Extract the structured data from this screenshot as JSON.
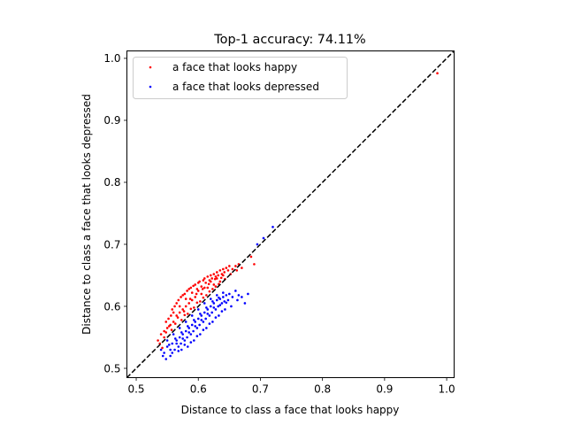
{
  "chart_data": {
    "type": "scatter",
    "title": "Top-1 accuracy: 74.11%",
    "xlabel": "Distance to class a face that looks happy",
    "ylabel": "Distance to class a face that looks depressed",
    "xlim": [
      0.485,
      1.012
    ],
    "ylim": [
      0.485,
      1.012
    ],
    "xticks": [
      0.5,
      0.6,
      0.7,
      0.8,
      0.9,
      1.0
    ],
    "xtick_labels": [
      "0.5",
      "0.6",
      "0.7",
      "0.8",
      "0.9",
      "1.0"
    ],
    "yticks": [
      0.5,
      0.6,
      0.7,
      0.8,
      0.9,
      1.0
    ],
    "ytick_labels": [
      "0.5",
      "0.6",
      "0.7",
      "0.8",
      "0.9",
      "1.0"
    ],
    "grid": false,
    "legend_position": "top-left",
    "reference_line": {
      "x": [
        0.485,
        1.012
      ],
      "y": [
        0.485,
        1.012
      ],
      "style": "dashed",
      "color": "#000000"
    },
    "series": [
      {
        "name": "a face that looks happy",
        "color": "#ff0000",
        "points": [
          [
            0.535,
            0.545
          ],
          [
            0.54,
            0.555
          ],
          [
            0.545,
            0.56
          ],
          [
            0.55,
            0.565
          ],
          [
            0.548,
            0.575
          ],
          [
            0.552,
            0.58
          ],
          [
            0.556,
            0.585
          ],
          [
            0.56,
            0.59
          ],
          [
            0.558,
            0.595
          ],
          [
            0.562,
            0.6
          ],
          [
            0.565,
            0.605
          ],
          [
            0.568,
            0.61
          ],
          [
            0.57,
            0.6
          ],
          [
            0.572,
            0.615
          ],
          [
            0.575,
            0.618
          ],
          [
            0.578,
            0.62
          ],
          [
            0.58,
            0.612
          ],
          [
            0.582,
            0.625
          ],
          [
            0.585,
            0.628
          ],
          [
            0.588,
            0.63
          ],
          [
            0.59,
            0.622
          ],
          [
            0.592,
            0.633
          ],
          [
            0.595,
            0.635
          ],
          [
            0.598,
            0.628
          ],
          [
            0.6,
            0.638
          ],
          [
            0.602,
            0.64
          ],
          [
            0.605,
            0.632
          ],
          [
            0.608,
            0.642
          ],
          [
            0.61,
            0.645
          ],
          [
            0.612,
            0.638
          ],
          [
            0.615,
            0.648
          ],
          [
            0.618,
            0.642
          ],
          [
            0.62,
            0.65
          ],
          [
            0.622,
            0.645
          ],
          [
            0.625,
            0.652
          ],
          [
            0.628,
            0.648
          ],
          [
            0.63,
            0.655
          ],
          [
            0.632,
            0.65
          ],
          [
            0.635,
            0.658
          ],
          [
            0.638,
            0.652
          ],
          [
            0.64,
            0.66
          ],
          [
            0.642,
            0.655
          ],
          [
            0.645,
            0.662
          ],
          [
            0.648,
            0.658
          ],
          [
            0.65,
            0.665
          ],
          [
            0.655,
            0.66
          ],
          [
            0.66,
            0.665
          ],
          [
            0.665,
            0.668
          ],
          [
            0.67,
            0.662
          ],
          [
            0.685,
            0.68
          ],
          [
            0.69,
            0.668
          ],
          [
            0.555,
            0.57
          ],
          [
            0.565,
            0.585
          ],
          [
            0.575,
            0.595
          ],
          [
            0.585,
            0.605
          ],
          [
            0.595,
            0.615
          ],
          [
            0.605,
            0.62
          ],
          [
            0.615,
            0.63
          ],
          [
            0.625,
            0.635
          ],
          [
            0.635,
            0.64
          ],
          [
            0.545,
            0.55
          ],
          [
            0.56,
            0.575
          ],
          [
            0.57,
            0.59
          ],
          [
            0.58,
            0.6
          ],
          [
            0.59,
            0.61
          ],
          [
            0.6,
            0.625
          ],
          [
            0.61,
            0.63
          ],
          [
            0.62,
            0.64
          ],
          [
            0.63,
            0.645
          ],
          [
            0.64,
            0.65
          ],
          [
            0.538,
            0.54
          ],
          [
            0.553,
            0.568
          ],
          [
            0.567,
            0.582
          ],
          [
            0.577,
            0.592
          ],
          [
            0.587,
            0.612
          ],
          [
            0.597,
            0.62
          ],
          [
            0.607,
            0.628
          ],
          [
            0.617,
            0.636
          ],
          [
            0.627,
            0.644
          ],
          [
            0.637,
            0.646
          ],
          [
            0.542,
            0.533
          ],
          [
            0.557,
            0.562
          ],
          [
            0.573,
            0.578
          ],
          [
            0.583,
            0.588
          ],
          [
            0.593,
            0.598
          ],
          [
            0.603,
            0.608
          ],
          [
            0.613,
            0.618
          ],
          [
            0.623,
            0.628
          ],
          [
            0.633,
            0.636
          ],
          [
            0.643,
            0.644
          ],
          [
            0.548,
            0.558
          ],
          [
            0.563,
            0.572
          ],
          [
            0.578,
            0.586
          ],
          [
            0.588,
            0.596
          ],
          [
            0.598,
            0.606
          ],
          [
            0.608,
            0.614
          ],
          [
            0.618,
            0.624
          ],
          [
            0.628,
            0.632
          ],
          [
            0.652,
            0.652
          ],
          [
            0.662,
            0.658
          ],
          [
            0.985,
            0.976
          ]
        ]
      },
      {
        "name": "a face that looks depressed",
        "color": "#0000ff",
        "points": [
          [
            0.54,
            0.53
          ],
          [
            0.545,
            0.525
          ],
          [
            0.55,
            0.535
          ],
          [
            0.555,
            0.52
          ],
          [
            0.558,
            0.54
          ],
          [
            0.562,
            0.53
          ],
          [
            0.565,
            0.545
          ],
          [
            0.568,
            0.535
          ],
          [
            0.57,
            0.55
          ],
          [
            0.572,
            0.54
          ],
          [
            0.575,
            0.555
          ],
          [
            0.578,
            0.545
          ],
          [
            0.58,
            0.56
          ],
          [
            0.582,
            0.55
          ],
          [
            0.585,
            0.565
          ],
          [
            0.588,
            0.555
          ],
          [
            0.59,
            0.57
          ],
          [
            0.592,
            0.56
          ],
          [
            0.595,
            0.575
          ],
          [
            0.598,
            0.565
          ],
          [
            0.6,
            0.58
          ],
          [
            0.602,
            0.57
          ],
          [
            0.605,
            0.585
          ],
          [
            0.608,
            0.575
          ],
          [
            0.61,
            0.59
          ],
          [
            0.612,
            0.58
          ],
          [
            0.615,
            0.595
          ],
          [
            0.618,
            0.585
          ],
          [
            0.62,
            0.6
          ],
          [
            0.622,
            0.59
          ],
          [
            0.625,
            0.605
          ],
          [
            0.628,
            0.595
          ],
          [
            0.63,
            0.61
          ],
          [
            0.632,
            0.6
          ],
          [
            0.635,
            0.612
          ],
          [
            0.638,
            0.605
          ],
          [
            0.64,
            0.615
          ],
          [
            0.642,
            0.608
          ],
          [
            0.645,
            0.618
          ],
          [
            0.648,
            0.61
          ],
          [
            0.65,
            0.62
          ],
          [
            0.655,
            0.615
          ],
          [
            0.66,
            0.625
          ],
          [
            0.665,
            0.618
          ],
          [
            0.67,
            0.615
          ],
          [
            0.68,
            0.62
          ],
          [
            0.695,
            0.7
          ],
          [
            0.705,
            0.71
          ],
          [
            0.72,
            0.728
          ],
          [
            0.555,
            0.53
          ],
          [
            0.565,
            0.54
          ],
          [
            0.575,
            0.548
          ],
          [
            0.585,
            0.558
          ],
          [
            0.595,
            0.568
          ],
          [
            0.605,
            0.578
          ],
          [
            0.615,
            0.588
          ],
          [
            0.625,
            0.598
          ],
          [
            0.635,
            0.602
          ],
          [
            0.645,
            0.606
          ],
          [
            0.55,
            0.545
          ],
          [
            0.56,
            0.555
          ],
          [
            0.57,
            0.565
          ],
          [
            0.58,
            0.575
          ],
          [
            0.59,
            0.585
          ],
          [
            0.6,
            0.595
          ],
          [
            0.61,
            0.605
          ],
          [
            0.62,
            0.612
          ],
          [
            0.63,
            0.618
          ],
          [
            0.64,
            0.622
          ],
          [
            0.548,
            0.515
          ],
          [
            0.558,
            0.525
          ],
          [
            0.568,
            0.528
          ],
          [
            0.578,
            0.538
          ],
          [
            0.588,
            0.542
          ],
          [
            0.598,
            0.552
          ],
          [
            0.608,
            0.562
          ],
          [
            0.618,
            0.572
          ],
          [
            0.628,
            0.582
          ],
          [
            0.638,
            0.592
          ],
          [
            0.543,
            0.52
          ],
          [
            0.553,
            0.538
          ],
          [
            0.563,
            0.548
          ],
          [
            0.573,
            0.558
          ],
          [
            0.583,
            0.568
          ],
          [
            0.593,
            0.578
          ],
          [
            0.603,
            0.588
          ],
          [
            0.613,
            0.598
          ],
          [
            0.623,
            0.608
          ],
          [
            0.633,
            0.614
          ],
          [
            0.573,
            0.53
          ],
          [
            0.583,
            0.535
          ],
          [
            0.593,
            0.545
          ],
          [
            0.603,
            0.555
          ],
          [
            0.613,
            0.565
          ],
          [
            0.623,
            0.575
          ],
          [
            0.633,
            0.585
          ],
          [
            0.643,
            0.595
          ],
          [
            0.653,
            0.6
          ],
          [
            0.663,
            0.61
          ],
          [
            0.675,
            0.605
          ]
        ]
      }
    ]
  }
}
